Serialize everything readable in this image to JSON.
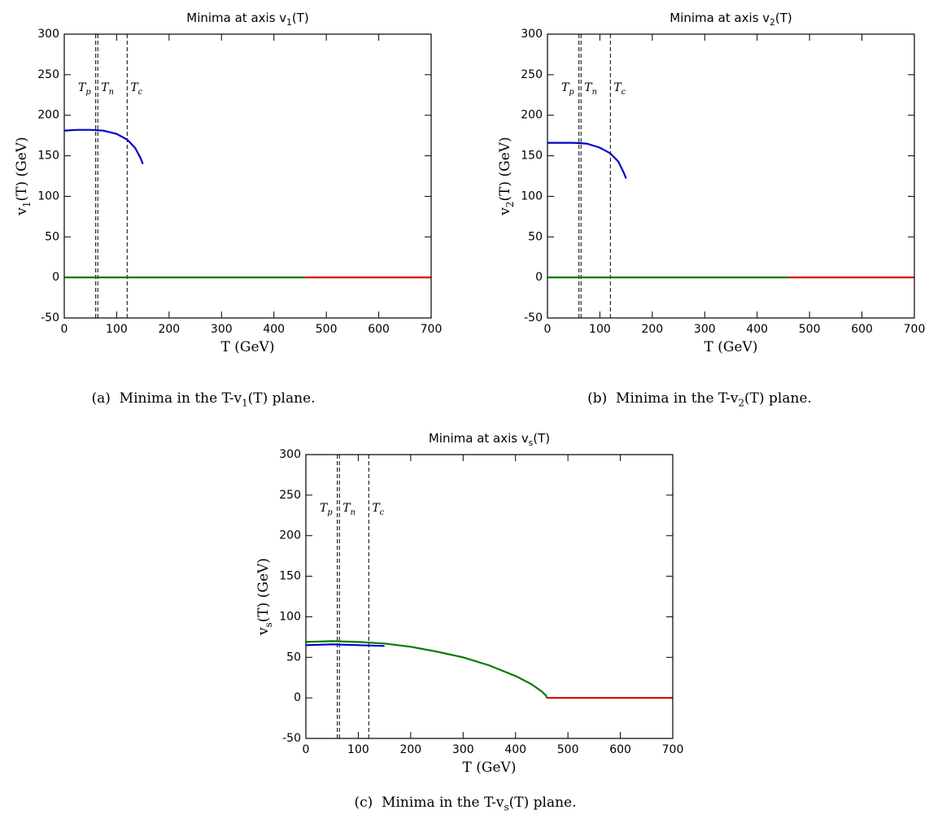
{
  "chart_data": [
    {
      "type": "line",
      "title": "Minima at axis v_1(T)",
      "xlabel": "T (GeV)",
      "ylabel": "v_1(T) (GeV)",
      "xlim": [
        0,
        700
      ],
      "ylim": [
        -50,
        300
      ],
      "xticks": [
        0,
        100,
        200,
        300,
        400,
        500,
        600,
        700
      ],
      "yticks": [
        -50,
        0,
        50,
        100,
        150,
        200,
        250,
        300
      ],
      "vlines": [
        {
          "label": "T_p",
          "value": 60
        },
        {
          "label": "T_n",
          "value": 64
        },
        {
          "label": "T_c",
          "value": 120
        }
      ],
      "series": [
        {
          "color": "#0000cc",
          "x": [
            0,
            25,
            50,
            75,
            100,
            120,
            135,
            145,
            150
          ],
          "values": [
            181,
            182,
            182,
            181,
            177,
            170,
            160,
            148,
            140
          ]
        },
        {
          "color": "#007a00",
          "x": [
            0,
            460
          ],
          "values": [
            0,
            0
          ]
        },
        {
          "color": "#e00000",
          "x": [
            460,
            700
          ],
          "values": [
            0,
            0
          ]
        }
      ],
      "caption": "(a)  Minima in the T-v_1(T) plane."
    },
    {
      "type": "line",
      "title": "Minima at axis v_2(T)",
      "xlabel": "T (GeV)",
      "ylabel": "v_2(T) (GeV)",
      "xlim": [
        0,
        700
      ],
      "ylim": [
        -50,
        300
      ],
      "xticks": [
        0,
        100,
        200,
        300,
        400,
        500,
        600,
        700
      ],
      "yticks": [
        -50,
        0,
        50,
        100,
        150,
        200,
        250,
        300
      ],
      "vlines": [
        {
          "label": "T_p",
          "value": 60
        },
        {
          "label": "T_n",
          "value": 64
        },
        {
          "label": "T_c",
          "value": 120
        }
      ],
      "series": [
        {
          "color": "#0000cc",
          "x": [
            0,
            50,
            75,
            100,
            120,
            135,
            145,
            150
          ],
          "values": [
            166,
            166,
            165,
            160,
            153,
            143,
            130,
            122
          ]
        },
        {
          "color": "#007a00",
          "x": [
            0,
            460
          ],
          "values": [
            0,
            0
          ]
        },
        {
          "color": "#e00000",
          "x": [
            460,
            700
          ],
          "values": [
            0,
            0
          ]
        }
      ],
      "caption": "(b)  Minima in the T-v_2(T) plane."
    },
    {
      "type": "line",
      "title": "Minima at axis v_s(T)",
      "xlabel": "T (GeV)",
      "ylabel": "v_s(T) (GeV)",
      "xlim": [
        0,
        700
      ],
      "ylim": [
        -50,
        300
      ],
      "xticks": [
        0,
        100,
        200,
        300,
        400,
        500,
        600,
        700
      ],
      "yticks": [
        -50,
        0,
        50,
        100,
        150,
        200,
        250,
        300
      ],
      "vlines": [
        {
          "label": "T_p",
          "value": 60
        },
        {
          "label": "T_n",
          "value": 64
        },
        {
          "label": "T_c",
          "value": 120
        }
      ],
      "series": [
        {
          "color": "#007a00",
          "x": [
            0,
            50,
            100,
            150,
            200,
            250,
            300,
            350,
            400,
            430,
            450,
            458,
            460
          ],
          "values": [
            69,
            70,
            69,
            67,
            63,
            57,
            50,
            40,
            27,
            17,
            8,
            3,
            0
          ]
        },
        {
          "color": "#0000cc",
          "x": [
            0,
            50,
            100,
            150
          ],
          "values": [
            65,
            66,
            65,
            64
          ]
        },
        {
          "color": "#e00000",
          "x": [
            460,
            700
          ],
          "values": [
            0,
            0
          ]
        }
      ],
      "caption": "(c)  Minima in the T-v_s(T) plane."
    }
  ]
}
